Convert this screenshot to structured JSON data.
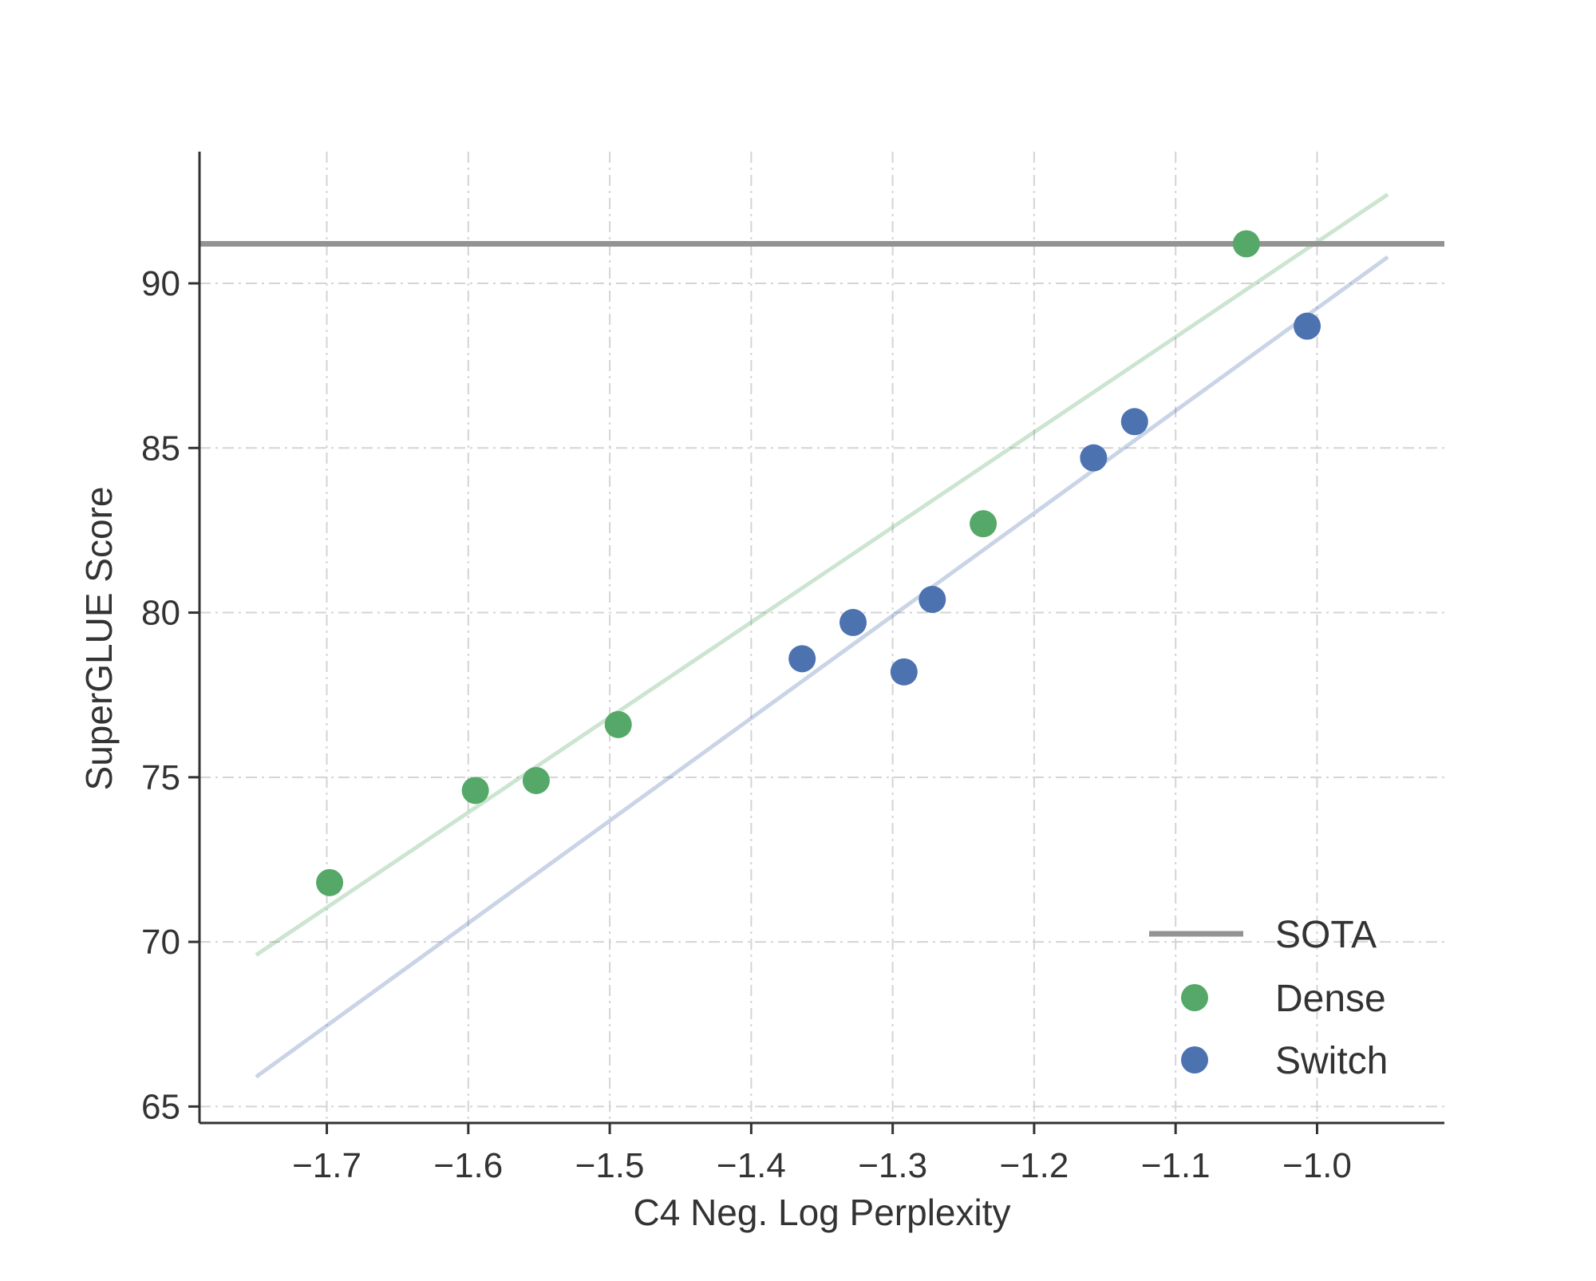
{
  "chart_data": {
    "type": "scatter",
    "xlabel": "C4 Neg. Log Perplexity",
    "ylabel": "SuperGLUE Score",
    "xlim": [
      -1.79,
      -0.91
    ],
    "ylim": [
      64.5,
      94.0
    ],
    "x_ticks": [
      -1.7,
      -1.6,
      -1.5,
      -1.4,
      -1.3,
      -1.2,
      -1.1,
      -1.0
    ],
    "x_tick_labels": [
      "−1.7",
      "−1.6",
      "−1.5",
      "−1.4",
      "−1.3",
      "−1.2",
      "−1.1",
      "−1.0"
    ],
    "y_ticks": [
      65,
      70,
      75,
      80,
      85,
      90
    ],
    "y_tick_labels": [
      "65",
      "70",
      "75",
      "80",
      "85",
      "90"
    ],
    "grid": true,
    "legend_position": "bottom-right",
    "sota": {
      "name": "SOTA",
      "y": 91.2,
      "color": "#939393"
    },
    "series": [
      {
        "name": "Dense",
        "color": "#55a868",
        "points": [
          {
            "x": -1.698,
            "y": 71.8
          },
          {
            "x": -1.595,
            "y": 74.6
          },
          {
            "x": -1.552,
            "y": 74.9
          },
          {
            "x": -1.494,
            "y": 76.6
          },
          {
            "x": -1.236,
            "y": 82.7
          },
          {
            "x": -1.05,
            "y": 91.2
          }
        ],
        "fit": {
          "x": [
            -1.75,
            -0.95
          ],
          "y": [
            69.6,
            92.7
          ]
        }
      },
      {
        "name": "Switch",
        "color": "#4c72b0",
        "points": [
          {
            "x": -1.364,
            "y": 78.6
          },
          {
            "x": -1.328,
            "y": 79.7
          },
          {
            "x": -1.292,
            "y": 78.2
          },
          {
            "x": -1.272,
            "y": 80.4
          },
          {
            "x": -1.158,
            "y": 84.7
          },
          {
            "x": -1.129,
            "y": 85.8
          },
          {
            "x": -1.007,
            "y": 88.7
          }
        ],
        "fit": {
          "x": [
            -1.75,
            -0.95
          ],
          "y": [
            65.9,
            90.8
          ]
        }
      }
    ]
  }
}
